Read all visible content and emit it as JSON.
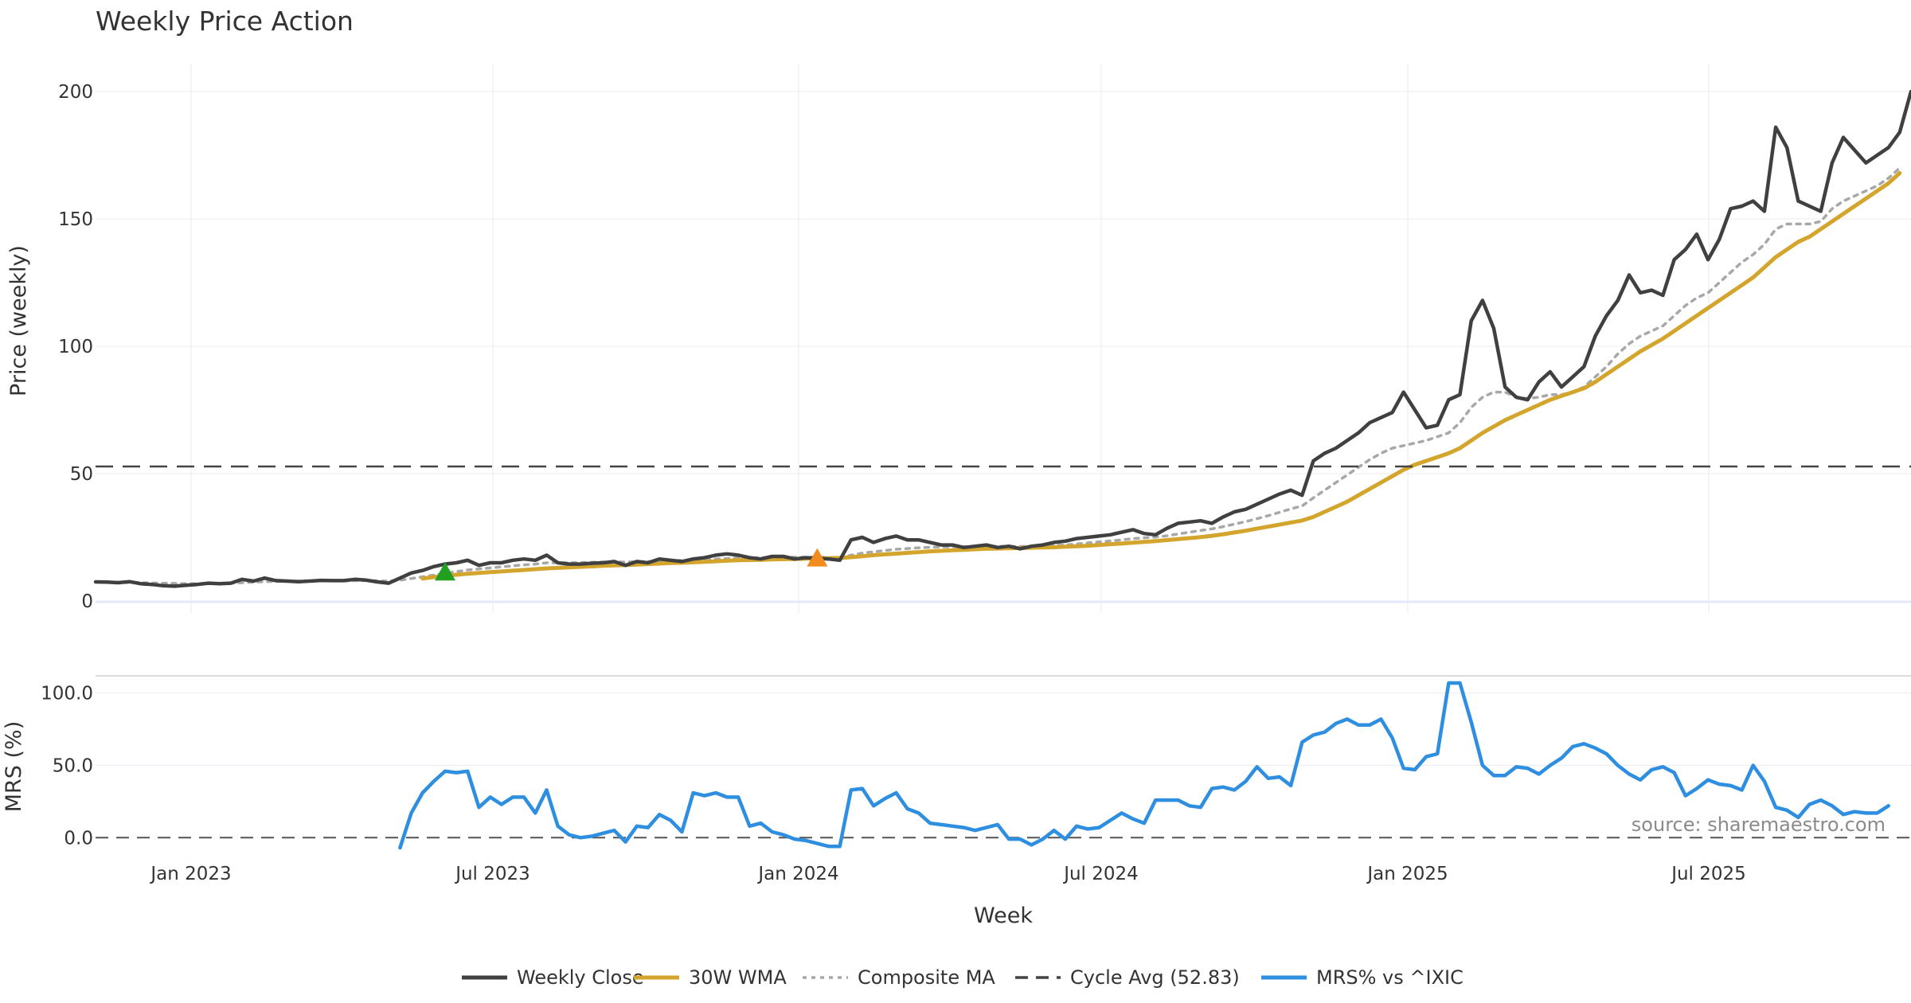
{
  "chart_data": {
    "title": "Weekly Price Action",
    "xlabel": "Week",
    "source": "source: sharemaestro.com",
    "x_ticks": [
      "Jan 2023",
      "Jul 2023",
      "Jan 2024",
      "Jul 2024",
      "Jan 2025",
      "Jul 2025"
    ],
    "price_panel": {
      "type": "line",
      "ylabel": "Price (weekly)",
      "ylim": [
        0,
        200
      ],
      "y_ticks": [
        "0",
        "50",
        "100",
        "150",
        "200"
      ],
      "series": [
        {
          "name": "Weekly Close",
          "color": "#404040",
          "style": "solid",
          "values": [
            7.5,
            7.4,
            7.2,
            7.6,
            6.8,
            6.5,
            6.0,
            5.8,
            6.2,
            6.5,
            7.0,
            6.8,
            7.0,
            8.5,
            7.8,
            9.0,
            8.0,
            7.8,
            7.6,
            7.8,
            8.1,
            8.0,
            8.0,
            8.5,
            8.2,
            7.5,
            7.0,
            9.0,
            11.0,
            12.0,
            13.5,
            14.5,
            15.0,
            16.0,
            14.0,
            15.0,
            15.0,
            16.0,
            16.5,
            16.0,
            18.0,
            15.0,
            14.5,
            14.5,
            14.8,
            15.0,
            15.5,
            14.0,
            15.5,
            15.0,
            16.5,
            16.0,
            15.5,
            16.5,
            17.0,
            18.0,
            18.5,
            18.0,
            17.0,
            16.5,
            17.5,
            17.5,
            16.5,
            17.0,
            16.8,
            16.5,
            16.0,
            24.0,
            25.0,
            23.0,
            24.5,
            25.5,
            24.0,
            24.0,
            23.0,
            22.0,
            22.0,
            21.0,
            21.5,
            22.0,
            21.0,
            21.5,
            20.5,
            21.5,
            22.0,
            23.0,
            23.5,
            24.5,
            25.0,
            25.5,
            26.0,
            27.0,
            28.0,
            26.5,
            26.0,
            28.5,
            30.5,
            31.0,
            31.5,
            30.5,
            33.0,
            35.0,
            36.0,
            38.0,
            40.0,
            42.0,
            43.5,
            41.5,
            55.0,
            58.0,
            60.0,
            63.0,
            66.0,
            70.0,
            72.0,
            74.0,
            82.0,
            75.0,
            68.0,
            69.0,
            79.0,
            81.0,
            110.0,
            118.0,
            107.0,
            84.0,
            80.0,
            79.0,
            86.0,
            90.0,
            84.0,
            88.0,
            92.0,
            104.0,
            112.0,
            118.0,
            128.0,
            121.0,
            122.0,
            120.0,
            134.0,
            138.0,
            144.0,
            134.0,
            142.0,
            154.0,
            155.0,
            157.0,
            153.0,
            186.0,
            178.0,
            157.0,
            155.0,
            153.0,
            172.0,
            182.0,
            177.0,
            172.0,
            175.0,
            178.0,
            184.0,
            200.0
          ]
        },
        {
          "name": "30W WMA",
          "color": "#d4a52c",
          "style": "solid",
          "values": [
            null,
            null,
            null,
            null,
            null,
            null,
            null,
            null,
            null,
            null,
            null,
            null,
            null,
            null,
            null,
            null,
            null,
            null,
            null,
            null,
            null,
            null,
            null,
            null,
            null,
            null,
            null,
            null,
            null,
            8.8,
            9.4,
            9.9,
            10.3,
            10.7,
            11.0,
            11.3,
            11.6,
            11.9,
            12.2,
            12.5,
            12.8,
            13.0,
            13.2,
            13.4,
            13.6,
            13.8,
            14.0,
            14.1,
            14.3,
            14.5,
            14.7,
            14.9,
            15.0,
            15.2,
            15.4,
            15.6,
            15.8,
            16.0,
            16.1,
            16.2,
            16.3,
            16.4,
            16.5,
            16.6,
            16.7,
            16.8,
            16.9,
            17.2,
            17.6,
            18.0,
            18.3,
            18.6,
            18.9,
            19.2,
            19.5,
            19.7,
            19.9,
            20.1,
            20.3,
            20.5,
            20.6,
            20.7,
            20.8,
            20.9,
            21.0,
            21.1,
            21.3,
            21.5,
            21.7,
            22.0,
            22.3,
            22.6,
            22.9,
            23.2,
            23.5,
            23.9,
            24.3,
            24.7,
            25.1,
            25.6,
            26.2,
            26.9,
            27.6,
            28.4,
            29.2,
            30.0,
            30.8,
            31.6,
            33.0,
            35.0,
            37.0,
            39.0,
            41.5,
            44.0,
            46.5,
            49.0,
            51.5,
            53.5,
            55.0,
            56.5,
            58.0,
            60.0,
            63.0,
            66.0,
            68.5,
            71.0,
            73.0,
            75.0,
            77.0,
            79.0,
            80.5,
            82.0,
            83.5,
            86.0,
            89.0,
            92.0,
            95.0,
            98.0,
            100.5,
            103.0,
            106.0,
            109.0,
            112.0,
            115.0,
            118.0,
            121.0,
            124.0,
            127.0,
            131.0,
            135.0,
            138.0,
            141.0,
            143.0,
            146.0,
            149.0,
            152.0,
            155.0,
            158.0,
            161.0,
            164.0,
            168.0
          ]
        },
        {
          "name": "Composite MA",
          "color": "#a8a8a8",
          "style": "dotted",
          "values": [
            7.5,
            7.4,
            7.4,
            7.3,
            7.2,
            7.1,
            7.0,
            6.9,
            6.8,
            6.8,
            6.9,
            6.9,
            7.0,
            7.2,
            7.4,
            7.6,
            7.7,
            7.8,
            7.8,
            7.8,
            7.9,
            7.9,
            7.9,
            8.0,
            8.0,
            7.9,
            7.8,
            8.2,
            8.8,
            9.5,
            10.2,
            10.9,
            11.5,
            12.2,
            12.6,
            13.0,
            13.4,
            13.8,
            14.2,
            14.5,
            15.0,
            15.0,
            15.0,
            15.1,
            15.2,
            15.3,
            15.4,
            15.3,
            15.4,
            15.5,
            15.7,
            15.8,
            15.9,
            16.0,
            16.2,
            16.5,
            16.7,
            16.9,
            17.0,
            17.0,
            17.1,
            17.2,
            17.2,
            17.2,
            17.2,
            17.1,
            17.0,
            18.0,
            18.8,
            19.3,
            19.8,
            20.3,
            20.6,
            20.9,
            21.1,
            21.2,
            21.3,
            21.3,
            21.4,
            21.5,
            21.5,
            21.5,
            21.4,
            21.5,
            21.6,
            21.8,
            22.0,
            22.4,
            22.8,
            23.2,
            23.6,
            24.0,
            24.5,
            24.8,
            25.1,
            25.6,
            26.3,
            27.0,
            27.7,
            28.3,
            29.2,
            30.2,
            31.2,
            32.3,
            33.5,
            34.8,
            36.2,
            37.3,
            40.5,
            43.5,
            46.5,
            49.5,
            52.5,
            55.5,
            58.0,
            60.0,
            61.0,
            62.0,
            63.0,
            64.5,
            66.0,
            70.0,
            76.0,
            80.0,
            82.0,
            82.0,
            80.0,
            79.5,
            80.0,
            81.0,
            81.0,
            82.0,
            84.0,
            88.0,
            92.0,
            97.0,
            101.0,
            104.0,
            106.0,
            108.0,
            112.0,
            116.0,
            119.0,
            121.0,
            125.0,
            129.0,
            133.0,
            136.0,
            140.0,
            146.0,
            148.0,
            148.0,
            148.0,
            149.0,
            154.0,
            157.0,
            159.0,
            161.0,
            163.0,
            166.0,
            170.0
          ]
        }
      ],
      "reference_line": {
        "name": "Cycle Avg (52.83)",
        "value": 52.83,
        "color": "#444444",
        "style": "dashed"
      },
      "markers": [
        {
          "name": "buy-signal",
          "week_index": 31,
          "value": 11.5,
          "color": "#22a022",
          "shape": "triangle-up"
        },
        {
          "name": "signal",
          "week_index": 64,
          "value": 17.0,
          "color": "#f28c1e",
          "shape": "triangle-up"
        }
      ]
    },
    "mrs_panel": {
      "type": "line",
      "ylabel": "MRS (%)",
      "ylim": [
        -7,
        107
      ],
      "y_ticks": [
        "0.0",
        "50.0",
        "100.0"
      ],
      "baseline": 0,
      "series": [
        {
          "name": "MRS% vs ^IXIC",
          "color": "#2e8ee0",
          "style": "solid",
          "values": [
            null,
            null,
            null,
            null,
            null,
            null,
            null,
            null,
            null,
            null,
            null,
            null,
            null,
            null,
            null,
            null,
            null,
            null,
            null,
            null,
            null,
            null,
            null,
            null,
            null,
            null,
            null,
            -7,
            17,
            31,
            39,
            46,
            45,
            46,
            21,
            28,
            23,
            28,
            28,
            17,
            33,
            8,
            2,
            0,
            1,
            3,
            5,
            -3,
            8,
            7,
            16,
            12,
            4,
            31,
            29,
            31,
            28,
            28,
            8,
            10,
            4,
            2,
            -1,
            -2,
            -4,
            -6,
            -6,
            33,
            34,
            22,
            27,
            31,
            20,
            17,
            10,
            9,
            8,
            7,
            5,
            7,
            9,
            -1,
            -1,
            -5,
            -1,
            5,
            -1,
            8,
            6,
            7,
            12,
            17,
            13,
            10,
            26,
            26,
            26,
            22,
            21,
            34,
            35,
            33,
            39,
            49,
            41,
            42,
            36,
            66,
            71,
            73,
            79,
            82,
            78,
            78,
            82,
            69,
            48,
            47,
            56,
            58,
            107,
            107,
            80,
            50,
            43,
            43,
            49,
            48,
            44,
            50,
            55,
            63,
            65,
            62,
            58,
            50,
            44,
            40,
            47,
            49,
            45,
            29,
            34,
            40,
            37,
            36,
            33,
            50,
            39,
            21,
            19,
            14,
            23,
            26,
            22,
            16,
            18,
            17,
            17,
            22
          ]
        }
      ]
    },
    "legend": [
      {
        "label": "Weekly Close",
        "color": "#404040",
        "style": "solid"
      },
      {
        "label": "30W WMA",
        "color": "#d4a52c",
        "style": "solid"
      },
      {
        "label": "Composite MA",
        "color": "#a8a8a8",
        "style": "dotted"
      },
      {
        "label": "Cycle Avg (52.83)",
        "color": "#444444",
        "style": "dashed"
      },
      {
        "label": "MRS% vs ^IXIC",
        "color": "#2e8ee0",
        "style": "solid"
      }
    ]
  }
}
